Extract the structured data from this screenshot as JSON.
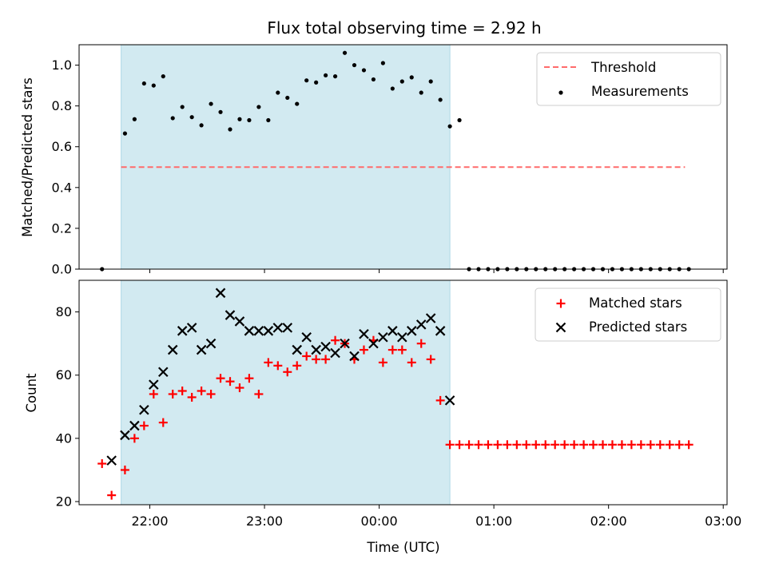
{
  "colors": {
    "shade": "#add8e6",
    "threshold": "#ff6b6b",
    "matched": "#ff0000",
    "predicted": "#000000",
    "measurement": "#000000"
  },
  "chart_data": [
    {
      "type": "scatter",
      "title": "Flux total observing time = 2.92 h",
      "ylabel": "Matched/Predicted stars",
      "xlim": [
        "21:23",
        "03:02"
      ],
      "ylim": [
        0,
        1.1
      ],
      "yticks": [
        "0.0",
        "0.2",
        "0.4",
        "0.6",
        "0.8",
        "1.0"
      ],
      "shaded_region": [
        "21:45",
        "00:37"
      ],
      "threshold": {
        "name": "Threshold",
        "value": 0.5,
        "x": [
          "21:45",
          "02:40"
        ]
      },
      "legend": "top-right",
      "series": [
        {
          "name": "Measurements",
          "x": [
            "21:35",
            "21:47",
            "21:52",
            "21:57",
            "22:02",
            "22:07",
            "22:12",
            "22:17",
            "22:22",
            "22:27",
            "22:32",
            "22:37",
            "22:42",
            "22:47",
            "22:52",
            "22:57",
            "23:02",
            "23:07",
            "23:12",
            "23:17",
            "23:22",
            "23:27",
            "23:32",
            "23:37",
            "23:42",
            "23:47",
            "23:52",
            "23:57",
            "00:02",
            "00:07",
            "00:12",
            "00:17",
            "00:22",
            "00:27",
            "00:32",
            "00:37",
            "00:42",
            "00:47",
            "00:52",
            "00:57",
            "01:02",
            "01:07",
            "01:12",
            "01:17",
            "01:22",
            "01:27",
            "01:32",
            "01:37",
            "01:42",
            "01:47",
            "01:52",
            "01:57",
            "02:02",
            "02:07",
            "02:12",
            "02:17",
            "02:22",
            "02:27",
            "02:32",
            "02:37",
            "02:42"
          ],
          "y": [
            0,
            0.665,
            0.735,
            0.91,
            0.9,
            0.945,
            0.74,
            0.795,
            0.745,
            0.705,
            0.81,
            0.77,
            0.685,
            0.735,
            0.73,
            0.795,
            0.73,
            0.865,
            0.84,
            0.81,
            0.925,
            0.915,
            0.95,
            0.945,
            1.06,
            1.0,
            0.975,
            0.93,
            1.01,
            0.885,
            0.92,
            0.94,
            0.865,
            0.92,
            0.83,
            0.7,
            0.73,
            0,
            0,
            0,
            0,
            0,
            0,
            0,
            0,
            0,
            0,
            0,
            0,
            0,
            0,
            0,
            0,
            0,
            0,
            0,
            0,
            0,
            0,
            0,
            0
          ]
        }
      ]
    },
    {
      "type": "scatter",
      "xlabel": "Time (UTC)",
      "ylabel": "Count",
      "xlim": [
        "21:23",
        "03:02"
      ],
      "ylim": [
        19,
        90
      ],
      "yticks": [
        "20",
        "40",
        "60",
        "80"
      ],
      "xticks": [
        "22:00",
        "23:00",
        "00:00",
        "01:00",
        "02:00",
        "03:00"
      ],
      "shaded_region": [
        "21:45",
        "00:37"
      ],
      "legend": "top-right",
      "series": [
        {
          "name": "Matched stars",
          "marker": "plus",
          "x": [
            "21:35",
            "21:40",
            "21:47",
            "21:52",
            "21:57",
            "22:02",
            "22:07",
            "22:12",
            "22:17",
            "22:22",
            "22:27",
            "22:32",
            "22:37",
            "22:42",
            "22:47",
            "22:52",
            "22:57",
            "23:02",
            "23:07",
            "23:12",
            "23:17",
            "23:22",
            "23:27",
            "23:32",
            "23:37",
            "23:42",
            "23:47",
            "23:52",
            "23:57",
            "00:02",
            "00:07",
            "00:12",
            "00:17",
            "00:22",
            "00:27",
            "00:32",
            "00:37",
            "00:42",
            "00:47",
            "00:52",
            "00:57",
            "01:02",
            "01:07",
            "01:12",
            "01:17",
            "01:22",
            "01:27",
            "01:32",
            "01:37",
            "01:42",
            "01:47",
            "01:52",
            "01:57",
            "02:02",
            "02:07",
            "02:12",
            "02:17",
            "02:22",
            "02:27",
            "02:32",
            "02:37",
            "02:42"
          ],
          "y": [
            32,
            22,
            30,
            40,
            44,
            54,
            45,
            54,
            55,
            53,
            55,
            54,
            59,
            58,
            56,
            59,
            54,
            64,
            63,
            61,
            63,
            66,
            65,
            65,
            71,
            70,
            65,
            68,
            71,
            64,
            68,
            68,
            64,
            70,
            65,
            52,
            38,
            38,
            38,
            38,
            38,
            38,
            38,
            38,
            38,
            38,
            38,
            38,
            38,
            38,
            38,
            38,
            38,
            38,
            38,
            38,
            38,
            38,
            38,
            38,
            38,
            38
          ]
        },
        {
          "name": "Predicted stars",
          "marker": "x",
          "x": [
            "21:40",
            "21:47",
            "21:52",
            "21:57",
            "22:02",
            "22:07",
            "22:12",
            "22:17",
            "22:22",
            "22:27",
            "22:32",
            "22:37",
            "22:42",
            "22:47",
            "22:52",
            "22:57",
            "23:02",
            "23:07",
            "23:12",
            "23:17",
            "23:22",
            "23:27",
            "23:32",
            "23:37",
            "23:42",
            "23:47",
            "23:52",
            "23:57",
            "00:02",
            "00:07",
            "00:12",
            "00:17",
            "00:22",
            "00:27",
            "00:32",
            "00:37"
          ],
          "y": [
            33,
            41,
            44,
            49,
            57,
            61,
            68,
            74,
            75,
            68,
            70,
            86,
            79,
            77,
            74,
            74,
            74,
            75,
            75,
            68,
            72,
            68,
            69,
            67,
            70,
            66,
            73,
            70,
            72,
            74,
            72,
            74,
            76,
            78,
            74,
            52
          ]
        }
      ]
    }
  ]
}
